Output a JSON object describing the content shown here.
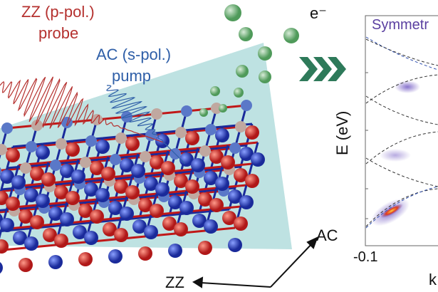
{
  "probe": {
    "line1": "ZZ (p-pol.)",
    "line2": "probe",
    "color": "#b5312f"
  },
  "pump": {
    "line1": "AC (s-pol.)",
    "line2": "pump",
    "color": "#2f5fa8"
  },
  "electron_label": "e⁻",
  "axes_labels": {
    "ac": "AC",
    "zz": "ZZ"
  },
  "plot": {
    "title": "Symmetr",
    "ylabel": "E (eV)",
    "xtick_left": "-0.1",
    "xlabel": "k",
    "title_color": "#5a3fa0"
  }
}
